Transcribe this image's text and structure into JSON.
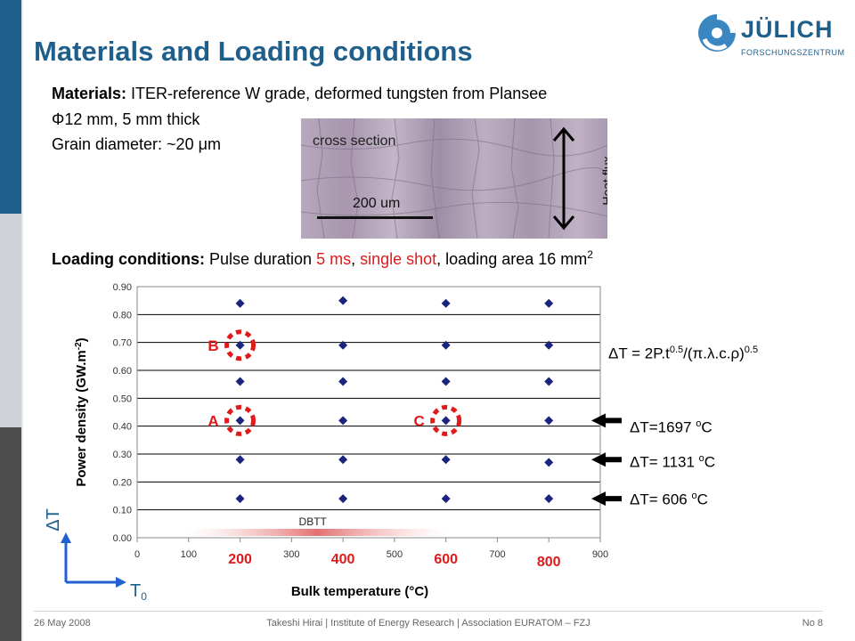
{
  "slide": {
    "title": "Materials and Loading conditions",
    "materials_label": "Materials:",
    "materials_text": " ITER-reference W grade, deformed tungsten from Plansee",
    "line2": "Φ12 mm, 5 mm thick",
    "line3": "Grain diameter: ~20 μm",
    "loading_label": "Loading conditions:",
    "loading_text_1": " Pulse duration ",
    "loading_red_1": "5 ms",
    "loading_text_2": ", ",
    "loading_red_2": "single shot",
    "loading_text_3": ", loading area 16 mm",
    "loading_sup": "2"
  },
  "logo": {
    "text": "JÜLICH",
    "sub": "FORSCHUNGSZENTRUM"
  },
  "photo": {
    "cross_label": "cross section",
    "scale_label": "200 um",
    "flux_label": "Heat flux"
  },
  "formula": {
    "lhs": "ΔT = 2P.t",
    "exp1": "0.5",
    "mid": "/(π.λ.c.ρ)",
    "exp2": "0.5"
  },
  "delta_t_labels": [
    {
      "prefix": "ΔT=1697 ",
      "sup": "o",
      "unit": "C",
      "y": 0.42
    },
    {
      "prefix": "ΔT= 1131 ",
      "sup": "o",
      "unit": "C",
      "y": 0.28
    },
    {
      "prefix": "ΔT= 606 ",
      "sup": "o",
      "unit": "C",
      "y": 0.14
    }
  ],
  "axes_hint": {
    "delta_t": "ΔT",
    "t0": "T",
    "t0_sub": "0"
  },
  "chart_data": {
    "type": "scatter",
    "xlabel": "Bulk temperature (°C)",
    "ylabel": "Power density (GW.m",
    "ylabel_sup": "-2",
    "ylabel_close": ")",
    "xlim": [
      0,
      900
    ],
    "ylim": [
      0,
      0.9
    ],
    "x_ticks": [
      "0",
      "100",
      "200",
      "300",
      "400",
      "500",
      "600",
      "700",
      "800",
      "900"
    ],
    "x_ticks_highlight": [
      "200",
      "400",
      "600",
      "800"
    ],
    "y_ticks": [
      "0.00",
      "0.10",
      "0.20",
      "0.30",
      "0.40",
      "0.50",
      "0.60",
      "0.70",
      "0.80",
      "0.90"
    ],
    "grid": "horizontal",
    "marker_color": "#1a237e",
    "points": [
      [
        200,
        0.14
      ],
      [
        400,
        0.14
      ],
      [
        600,
        0.14
      ],
      [
        800,
        0.14
      ],
      [
        200,
        0.28
      ],
      [
        400,
        0.28
      ],
      [
        600,
        0.28
      ],
      [
        800,
        0.27
      ],
      [
        200,
        0.42
      ],
      [
        400,
        0.42
      ],
      [
        600,
        0.42
      ],
      [
        800,
        0.42
      ],
      [
        200,
        0.56
      ],
      [
        400,
        0.56
      ],
      [
        600,
        0.56
      ],
      [
        800,
        0.56
      ],
      [
        200,
        0.69
      ],
      [
        400,
        0.69
      ],
      [
        600,
        0.69
      ],
      [
        800,
        0.69
      ],
      [
        200,
        0.84
      ],
      [
        400,
        0.85
      ],
      [
        600,
        0.84
      ],
      [
        800,
        0.84
      ]
    ],
    "annotations": [
      {
        "label": "A",
        "x": 200,
        "y": 0.42
      },
      {
        "label": "B",
        "x": 200,
        "y": 0.69
      },
      {
        "label": "C",
        "x": 600,
        "y": 0.42
      }
    ],
    "dbtt": {
      "label": "DBTT",
      "x_from": 100,
      "x_to": 600
    }
  },
  "footer": {
    "date": "26 May 2008",
    "center": "Takeshi Hirai | Institute of Energy Research | Association EURATOM – FZJ",
    "page": "No 8"
  }
}
